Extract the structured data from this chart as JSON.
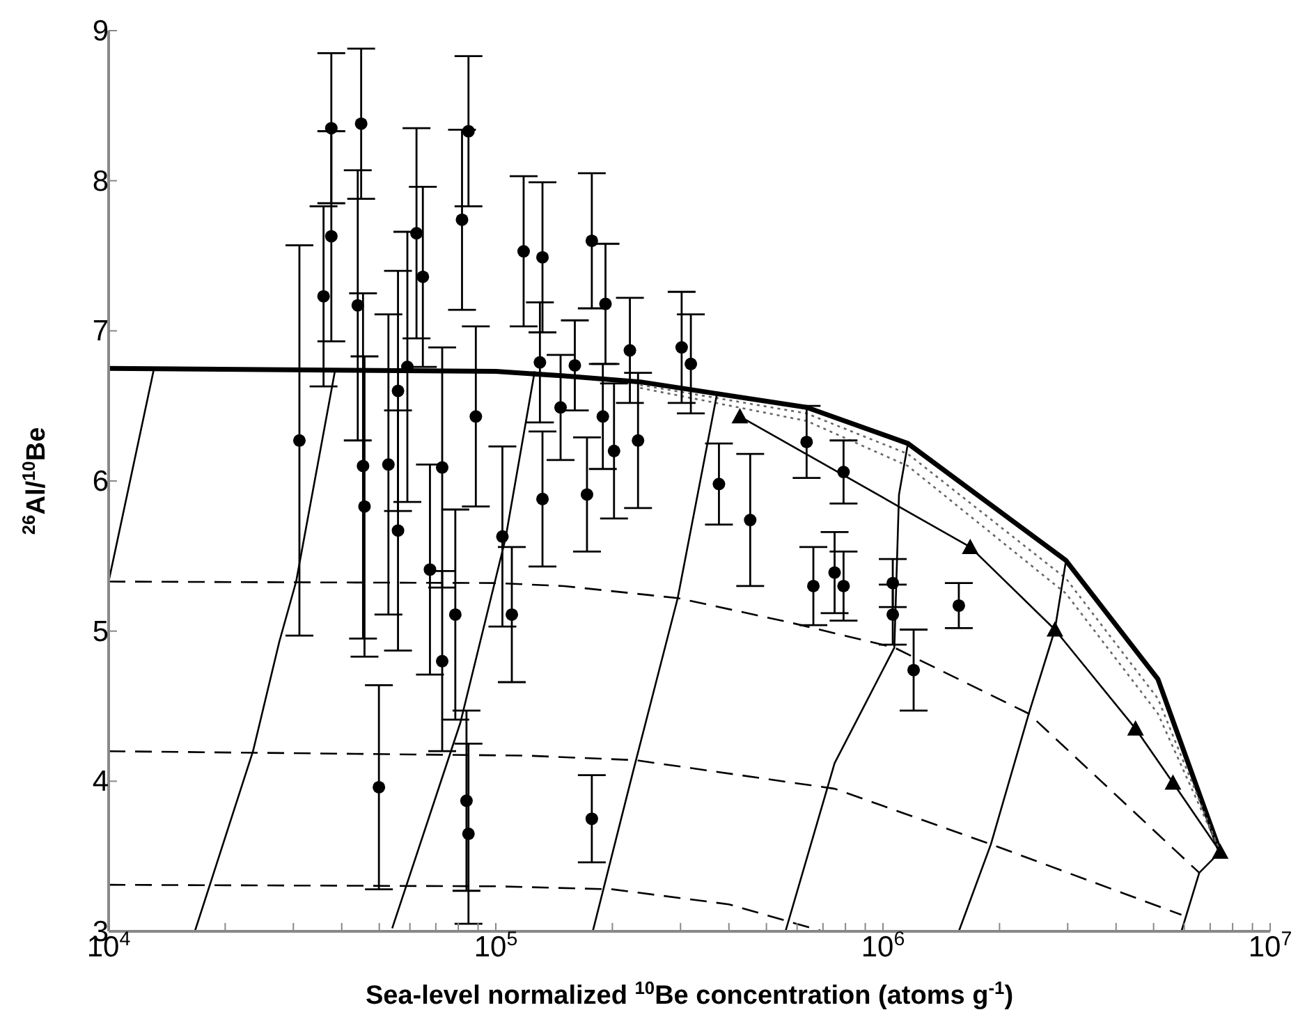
{
  "chart_data": {
    "type": "scatter",
    "xlabel": "Sea-level normalized $^{10}$Be concentration (atoms g$^{-1}$)",
    "ylabel": "$^{26}$Al/$^{10}$Be",
    "log": "x",
    "xlim": [
      10000,
      10000000
    ],
    "ylim": [
      3,
      9
    ],
    "xticks": [
      {
        "value": 10000,
        "label": "10$^{4}$"
      },
      {
        "value": 20000,
        "label": null
      },
      {
        "value": 30000,
        "label": null
      },
      {
        "value": 40000,
        "label": null
      },
      {
        "value": 50000,
        "label": null
      },
      {
        "value": 60000,
        "label": null
      },
      {
        "value": 70000,
        "label": null
      },
      {
        "value": 80000,
        "label": null
      },
      {
        "value": 90000,
        "label": null
      },
      {
        "value": 100000,
        "label": "10$^{5}$"
      },
      {
        "value": 200000,
        "label": null
      },
      {
        "value": 300000,
        "label": null
      },
      {
        "value": 400000,
        "label": null
      },
      {
        "value": 500000,
        "label": null
      },
      {
        "value": 600000,
        "label": null
      },
      {
        "value": 700000,
        "label": null
      },
      {
        "value": 800000,
        "label": null
      },
      {
        "value": 900000,
        "label": null
      },
      {
        "value": 1000000,
        "label": "10$^{6}$"
      },
      {
        "value": 2000000,
        "label": null
      },
      {
        "value": 3000000,
        "label": null
      },
      {
        "value": 4000000,
        "label": null
      },
      {
        "value": 5000000,
        "label": null
      },
      {
        "value": 6000000,
        "label": null
      },
      {
        "value": 7000000,
        "label": null
      },
      {
        "value": 8000000,
        "label": null
      },
      {
        "value": 9000000,
        "label": null
      },
      {
        "value": 10000000,
        "label": "10$^{7}$"
      }
    ],
    "yticks": [
      3,
      4,
      5,
      6,
      7,
      8,
      9
    ],
    "series": [
      {
        "type": "line",
        "color": "#000000",
        "line_style": "solid",
        "marker": "none",
        "x": [
          10000,
          100000,
          150000,
          236000,
          635000,
          1160000,
          2970000,
          5130000,
          7430000
        ],
        "values": [
          6.75,
          6.73,
          6.7,
          6.66,
          6.49,
          6.25,
          5.47,
          4.68,
          3.53
        ]
      },
      {
        "type": "line",
        "color": "#666666",
        "line_style": "dotted",
        "marker": "none",
        "x": [
          236000,
          635000,
          1160000,
          2970000,
          5130000,
          7430000
        ],
        "values": [
          6.64,
          6.45,
          6.18,
          5.35,
          4.55,
          3.53
        ]
      },
      {
        "type": "line",
        "color": "#666666",
        "line_style": "dotted",
        "marker": "none",
        "x": [
          236000,
          635000,
          1160000,
          2970000,
          5130000,
          7430000
        ],
        "values": [
          6.62,
          6.4,
          6.1,
          5.25,
          4.45,
          3.53
        ]
      },
      {
        "type": "line",
        "color": "#000000",
        "line_style": "solid",
        "marker": "triangle",
        "x": [
          427000,
          1680000,
          2780000,
          4490000,
          5610000,
          7430000
        ],
        "values": [
          6.43,
          5.56,
          5.01,
          4.35,
          3.99,
          3.53
        ]
      },
      {
        "type": "line",
        "color": "#000000",
        "line_style": "dashed",
        "marker": "none",
        "x": [
          10000,
          100000,
          150000,
          295000,
          570000,
          1070000,
          2380000,
          6560000
        ],
        "values": [
          5.33,
          5.32,
          5.3,
          5.22,
          5.06,
          4.89,
          4.45,
          3.39
        ]
      },
      {
        "type": "line",
        "color": "#000000",
        "line_style": "dashed",
        "marker": "none",
        "x": [
          10000,
          122000,
          230000,
          750000,
          1900000,
          5900000
        ],
        "values": [
          4.2,
          4.17,
          4.14,
          3.95,
          3.58,
          3.11
        ]
      },
      {
        "type": "line",
        "color": "#000000",
        "line_style": "dashed",
        "marker": "none",
        "x": [
          10000,
          100000,
          200000,
          400000,
          700000
        ],
        "values": [
          3.31,
          3.3,
          3.28,
          3.18,
          3.0
        ]
      },
      {
        "type": "line",
        "color": "#000000",
        "line_style": "solid",
        "marker": "none",
        "x": [
          10000,
          13100
        ],
        "values": [
          5.33,
          6.75
        ]
      },
      {
        "type": "line",
        "color": "#000000",
        "line_style": "solid",
        "marker": "none",
        "x": [
          16700,
          23600,
          27600,
          30500,
          38400
        ],
        "values": [
          3,
          4.2,
          4.93,
          5.33,
          6.73
        ]
      },
      {
        "type": "line",
        "color": "#000000",
        "line_style": "solid",
        "marker": "none",
        "x": [
          54000,
          81000,
          106000,
          126000
        ],
        "values": [
          3.02,
          4.39,
          5.62,
          6.73
        ]
      },
      {
        "type": "line",
        "color": "#000000",
        "line_style": "solid",
        "marker": "none",
        "x": [
          178000,
          226000,
          295000,
          372000
        ],
        "values": [
          3,
          4.06,
          5.22,
          6.57
        ]
      },
      {
        "type": "line",
        "color": "#000000",
        "line_style": "solid",
        "marker": "none",
        "x": [
          560000,
          750000,
          1070000,
          1100000,
          1160000
        ],
        "values": [
          3,
          4.12,
          4.89,
          5.91,
          6.25
        ]
      },
      {
        "type": "line",
        "color": "#000000",
        "line_style": "solid",
        "marker": "none",
        "x": [
          1570000,
          1900000,
          2380000,
          2780000,
          2970000
        ],
        "values": [
          3,
          3.58,
          4.45,
          5.01,
          5.47
        ]
      },
      {
        "type": "line",
        "color": "#000000",
        "line_style": "solid",
        "marker": "none",
        "x": [
          5900000,
          6560000,
          7430000
        ],
        "values": [
          3,
          3.39,
          3.53
        ]
      },
      {
        "color": "#000000",
        "marker": "circle",
        "x": [
          31100,
          49900,
          177000,
          132000,
          172000,
          147000,
          130000,
          132000,
          118000,
          110000,
          104000,
          72700,
          84000,
          85000,
          35900,
          37600,
          37600,
          44900,
          45400,
          45800,
          44000,
          55900,
          62400,
          64800,
          81800,
          85000,
          67600,
          55900,
          52800,
          72700,
          59100,
          78600,
          88800,
          177000,
          302000,
          319000,
          377000,
          454000,
          635000,
          791000,
          661000,
          750000,
          791000,
          1060000,
          1060000,
          1570000,
          1200000,
          202000,
          233000,
          222000,
          192000,
          160000,
          189000
        ],
        "values": [
          6.27,
          3.96,
          3.75,
          5.88,
          5.91,
          6.49,
          6.79,
          7.49,
          7.53,
          5.11,
          5.63,
          4.8,
          3.87,
          3.65,
          7.23,
          7.63,
          8.35,
          8.38,
          6.1,
          5.83,
          7.17,
          6.6,
          7.65,
          7.36,
          7.74,
          8.33,
          5.41,
          5.67,
          6.11,
          6.09,
          6.76,
          5.11,
          6.43,
          7.6,
          6.89,
          6.78,
          5.98,
          5.74,
          6.26,
          6.06,
          5.3,
          5.39,
          5.3,
          5.32,
          5.11,
          5.17,
          4.74,
          6.2,
          6.27,
          6.87,
          7.18,
          6.77,
          6.43
        ],
        "errors": [
          1.3,
          0.68,
          0.29,
          0.45,
          0.38,
          0.35,
          0.4,
          0.5,
          0.5,
          0.45,
          0.6,
          0.6,
          0.6,
          0.6,
          0.6,
          0.7,
          0.5,
          0.5,
          1.15,
          1.0,
          0.9,
          0.8,
          0.7,
          0.6,
          0.6,
          0.5,
          0.7,
          0.8,
          1.0,
          0.8,
          0.9,
          0.7,
          0.6,
          0.45,
          0.37,
          0.33,
          0.27,
          0.44,
          0.24,
          0.21,
          0.26,
          0.27,
          0.23,
          0.16,
          0.2,
          0.15,
          0.27,
          0.45,
          0.45,
          0.35,
          0.4,
          0.3,
          0.35
        ]
      }
    ]
  }
}
